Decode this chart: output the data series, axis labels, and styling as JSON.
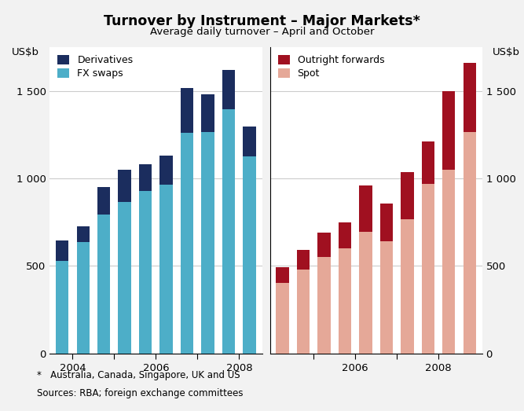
{
  "title": "Turnover by Instrument – Major Markets*",
  "subtitle": "Average daily turnover – April and October",
  "ylabel_left": "US$b",
  "ylabel_right": "US$b",
  "footnote1": "*   Australia, Canada, Singapore, UK and US",
  "footnote2": "Sources: RBA; foreign exchange committees",
  "fx_swaps": [
    530,
    635,
    795,
    865,
    930,
    965,
    1260,
    1265,
    1395,
    1125
  ],
  "derivatives": [
    115,
    90,
    155,
    185,
    150,
    165,
    255,
    215,
    225,
    170
  ],
  "spot": [
    405,
    480,
    550,
    600,
    695,
    640,
    765,
    970,
    1050,
    1265
  ],
  "outright_forwards": [
    90,
    110,
    140,
    150,
    265,
    215,
    270,
    240,
    450,
    395
  ],
  "fx_color": "#4daec8",
  "deriv_color": "#1b2d5e",
  "spot_color": "#e5a898",
  "outright_color": "#a01020",
  "ylim": [
    0,
    1750
  ],
  "yticks": [
    0,
    500,
    1000,
    1500
  ],
  "ytick_labels": [
    "0",
    "500",
    "1 000",
    "1 500"
  ],
  "left_xtick_pos": [
    0.5,
    2.5,
    4.5,
    6.5,
    8.5
  ],
  "left_xtick_labels": [
    "2004",
    "",
    "2006",
    "",
    "2008"
  ],
  "right_xtick_pos": [
    1.5,
    3.5,
    5.5,
    7.5
  ],
  "right_xtick_labels": [
    "",
    "2006",
    "",
    "2008"
  ],
  "bg_color": "#f2f2f2",
  "plot_bg": "#ffffff",
  "grid_color": "#cccccc"
}
